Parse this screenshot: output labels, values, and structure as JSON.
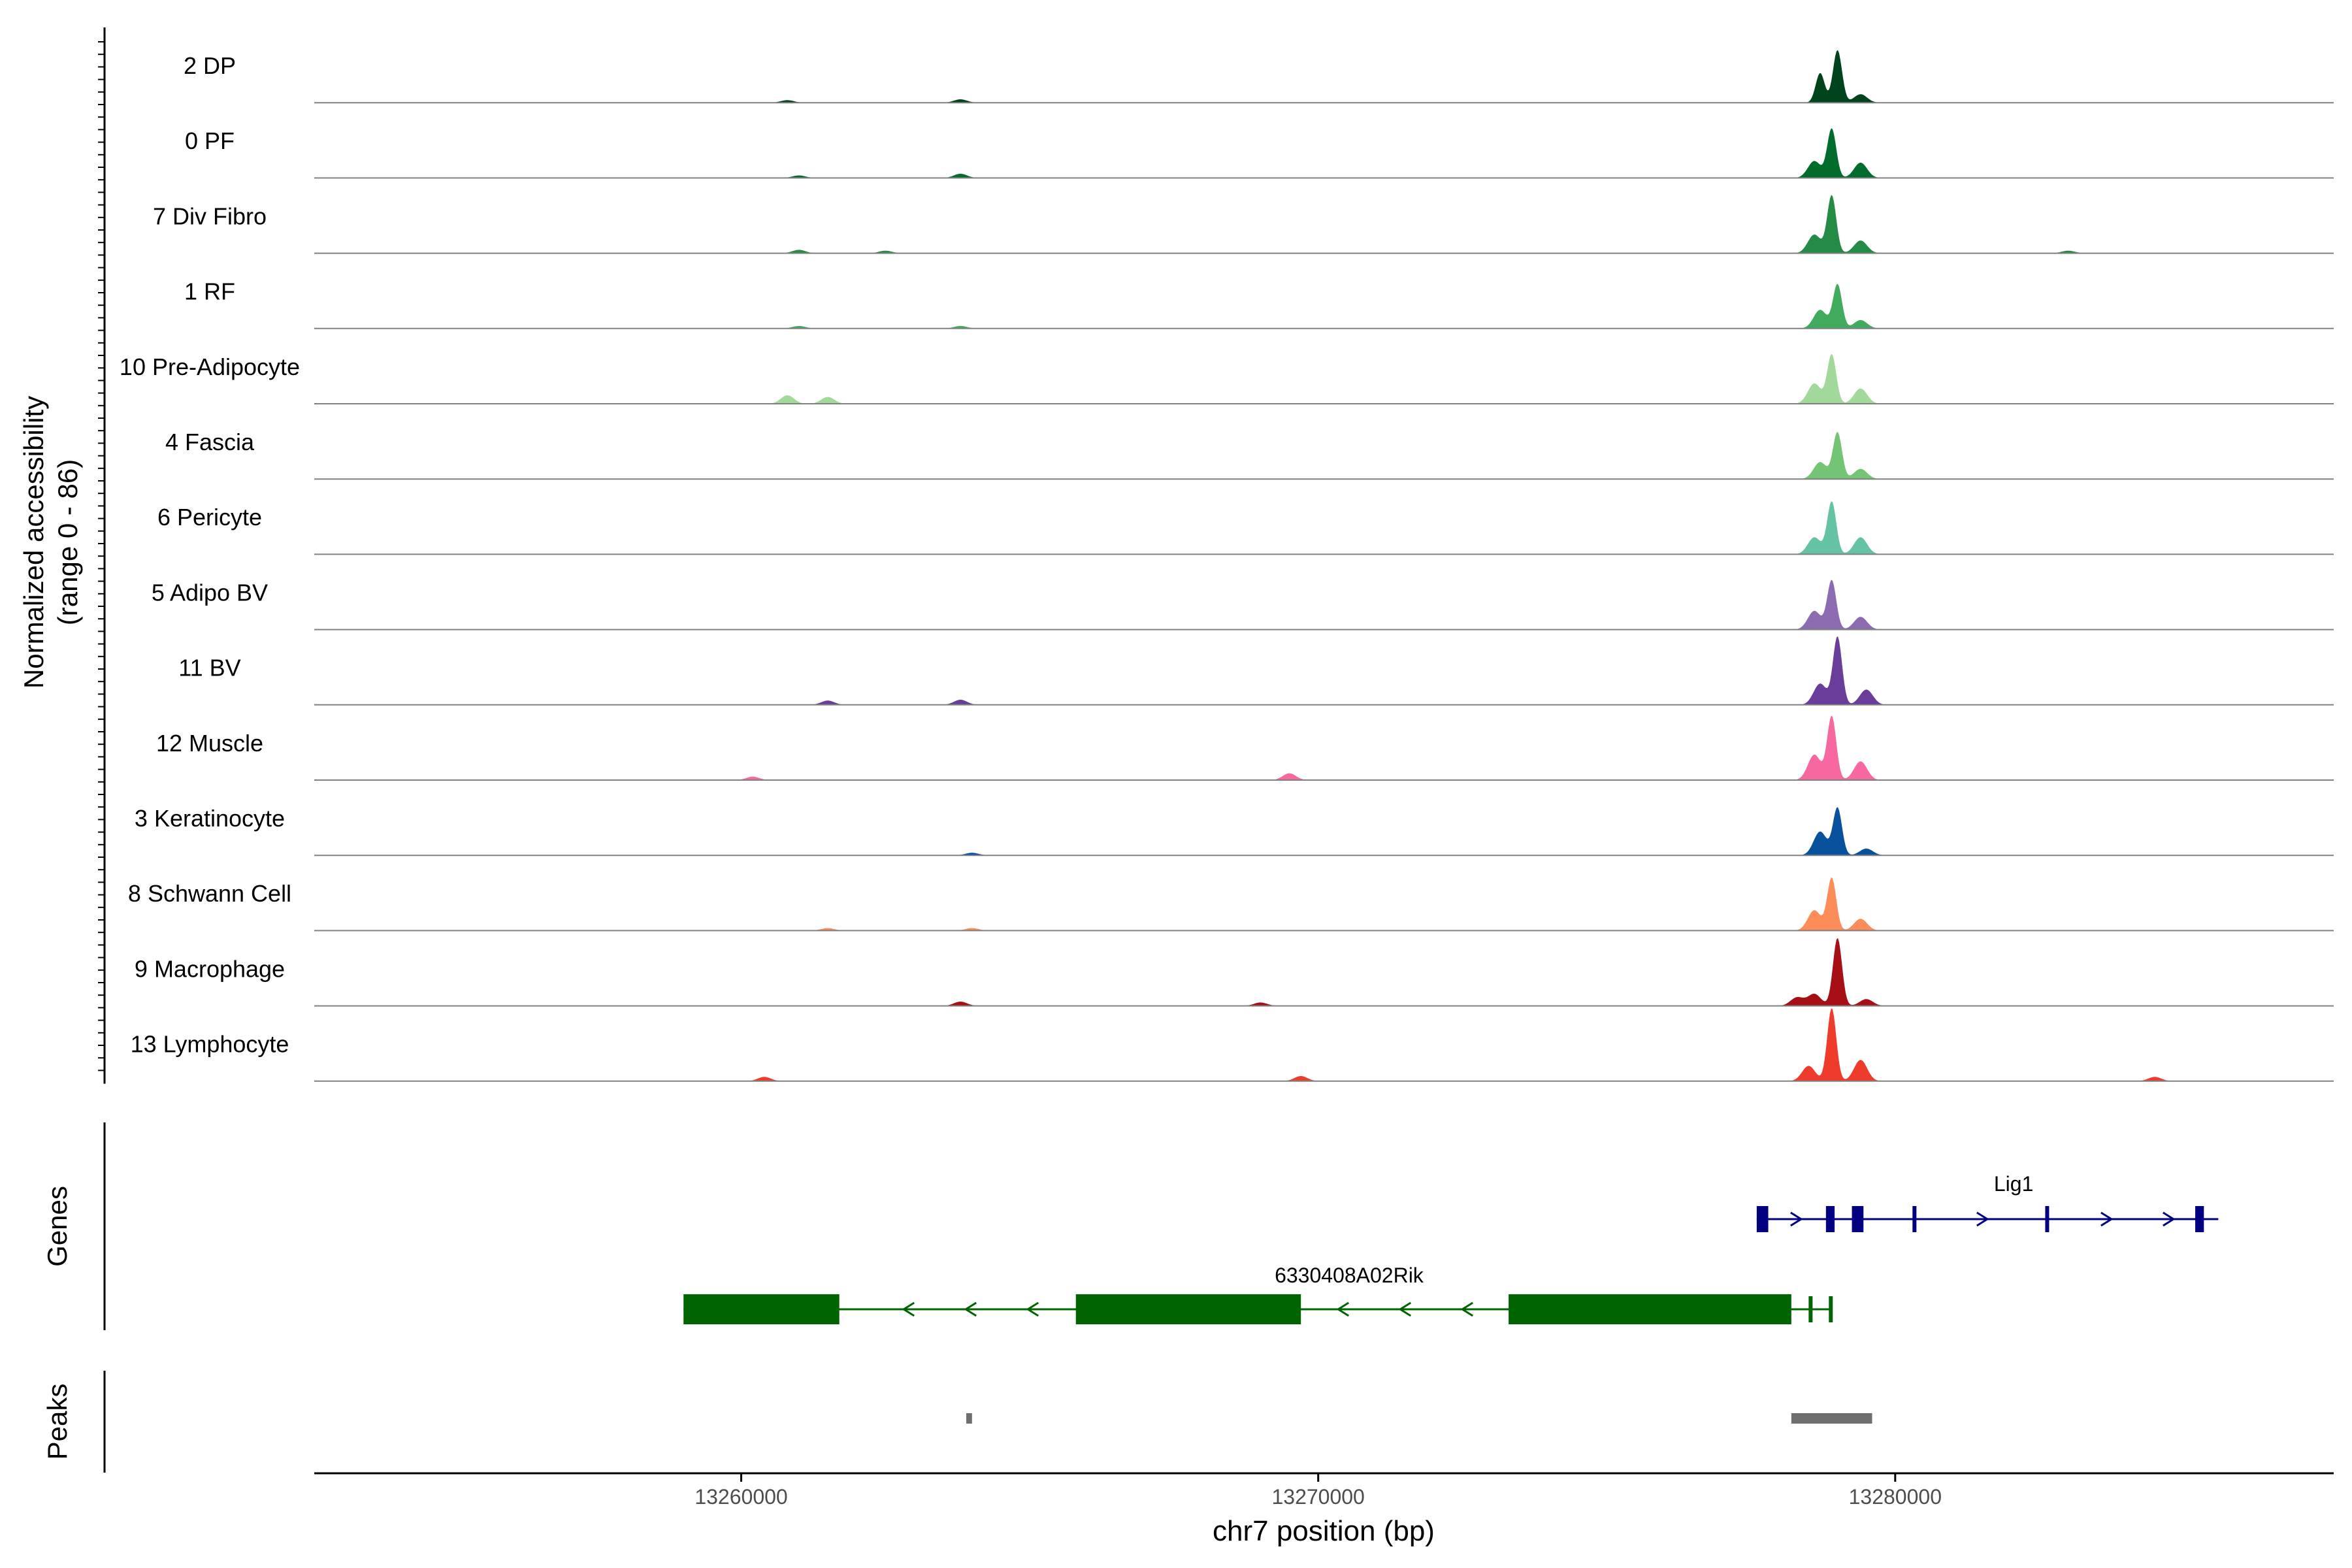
{
  "chart_data": {
    "type": "area",
    "title": "",
    "xlabel": "chr7 position (bp)",
    "ylabel": "Normalized accessibility",
    "ylabel_sub": "(range 0 - 86)",
    "yrange": [
      0,
      86
    ],
    "xlim": [
      13252600,
      13287600
    ],
    "xticks": [
      13260000,
      13270000,
      13280000
    ],
    "xtick_labels": [
      "13260000",
      "13270000",
      "13280000"
    ],
    "track_labels": {
      "genes": "Genes",
      "peaks": "Peaks"
    },
    "series": [
      {
        "name": "2 DP",
        "color": "#00441B",
        "peaks": [
          [
            13279000,
            62
          ],
          [
            13278700,
            35
          ],
          [
            13279400,
            10
          ],
          [
            13263800,
            4
          ],
          [
            13260800,
            3
          ]
        ]
      },
      {
        "name": "0 PF",
        "color": "#006D2C",
        "peaks": [
          [
            13278900,
            58
          ],
          [
            13279400,
            18
          ],
          [
            13278600,
            20
          ],
          [
            13263800,
            5
          ],
          [
            13261000,
            3
          ]
        ]
      },
      {
        "name": "7 Div Fibro",
        "color": "#238B45",
        "peaks": [
          [
            13278900,
            68
          ],
          [
            13279400,
            15
          ],
          [
            13278600,
            22
          ],
          [
            13261000,
            4
          ],
          [
            13262500,
            3
          ],
          [
            13283000,
            3
          ]
        ]
      },
      {
        "name": "1 RF",
        "color": "#41AB5D",
        "peaks": [
          [
            13279000,
            52
          ],
          [
            13278700,
            22
          ],
          [
            13279400,
            10
          ],
          [
            13261000,
            3
          ],
          [
            13263800,
            3
          ]
        ]
      },
      {
        "name": "10 Pre-Adipocyte",
        "color": "#A1D99B",
        "peaks": [
          [
            13278900,
            58
          ],
          [
            13279400,
            18
          ],
          [
            13278600,
            24
          ],
          [
            13260800,
            10
          ],
          [
            13261500,
            8
          ]
        ]
      },
      {
        "name": "4 Fascia",
        "color": "#74C476",
        "peaks": [
          [
            13279000,
            55
          ],
          [
            13279400,
            12
          ],
          [
            13278700,
            20
          ]
        ]
      },
      {
        "name": "6 Pericyte",
        "color": "#66C2A4",
        "peaks": [
          [
            13278900,
            62
          ],
          [
            13279400,
            20
          ],
          [
            13278600,
            20
          ]
        ]
      },
      {
        "name": "5 Adipo BV",
        "color": "#8C6BB1",
        "peaks": [
          [
            13278900,
            58
          ],
          [
            13279400,
            15
          ],
          [
            13278600,
            22
          ]
        ]
      },
      {
        "name": "11 BV",
        "color": "#6A3D9A",
        "peaks": [
          [
            13279000,
            80
          ],
          [
            13279500,
            18
          ],
          [
            13278700,
            25
          ],
          [
            13263800,
            6
          ],
          [
            13261500,
            5
          ]
        ]
      },
      {
        "name": "12 Muscle",
        "color": "#F768A1",
        "peaks": [
          [
            13278900,
            75
          ],
          [
            13279400,
            22
          ],
          [
            13278600,
            30
          ],
          [
            13269500,
            8
          ],
          [
            13260200,
            4
          ]
        ]
      },
      {
        "name": "3 Keratinocyte",
        "color": "#08519C",
        "peaks": [
          [
            13279000,
            56
          ],
          [
            13278700,
            28
          ],
          [
            13279500,
            8
          ],
          [
            13264000,
            3
          ]
        ]
      },
      {
        "name": "8 Schwann Cell",
        "color": "#FC8D59",
        "peaks": [
          [
            13278900,
            62
          ],
          [
            13279400,
            14
          ],
          [
            13278600,
            24
          ],
          [
            13264000,
            3
          ],
          [
            13261500,
            3
          ]
        ]
      },
      {
        "name": "9 Macrophage",
        "color": "#A50F15",
        "peaks": [
          [
            13279000,
            80
          ],
          [
            13278600,
            14
          ],
          [
            13278300,
            10
          ],
          [
            13279500,
            8
          ],
          [
            13263800,
            5
          ],
          [
            13269000,
            4
          ]
        ]
      },
      {
        "name": "13 Lymphocyte",
        "color": "#EF3B2C",
        "peaks": [
          [
            13278900,
            86
          ],
          [
            13279400,
            25
          ],
          [
            13278500,
            18
          ],
          [
            13269700,
            6
          ],
          [
            13260400,
            5
          ],
          [
            13284500,
            5
          ]
        ]
      }
    ],
    "genes": [
      {
        "name": "Lig1",
        "strand": "+",
        "color": "#000080",
        "start": 13277600,
        "end": 13285600,
        "exons": [
          [
            13277600,
            13277800
          ],
          [
            13278800,
            13278950
          ],
          [
            13279250,
            13279450
          ],
          [
            13280300,
            13280350
          ],
          [
            13282600,
            13282650
          ],
          [
            13285200,
            13285350
          ]
        ]
      },
      {
        "name": "6330408A02Rik",
        "strand": "-",
        "color": "#006400",
        "start": 13259000,
        "end": 13278900,
        "exons": [
          [
            13259000,
            13261700
          ],
          [
            13265800,
            13269700
          ],
          [
            13273300,
            13278200
          ],
          [
            13278500,
            13278550
          ],
          [
            13278850,
            13278900
          ]
        ]
      }
    ],
    "peaks_track": [
      [
        13263900,
        13264000
      ],
      [
        13278200,
        13279600
      ]
    ],
    "peak_color": "#6E6E6E"
  }
}
